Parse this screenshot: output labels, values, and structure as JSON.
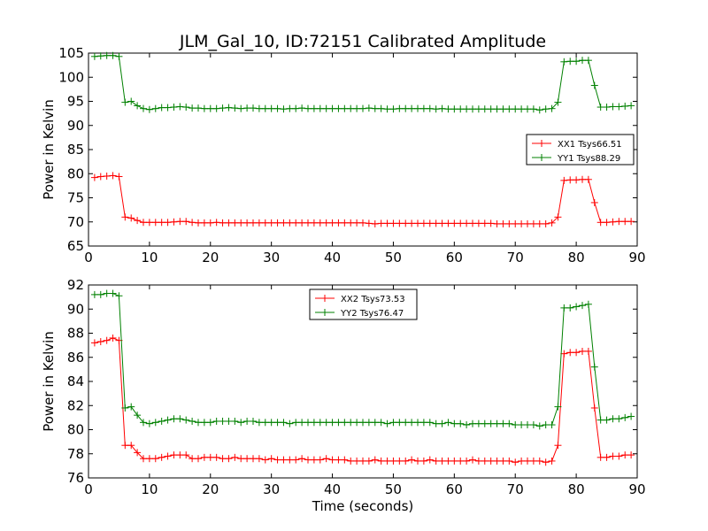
{
  "title": "JLM_Gal_10, ID:72151 Calibrated Amplitude",
  "chart_data": [
    {
      "type": "line",
      "xlabel": "",
      "ylabel": "Power in Kelvin",
      "xlim": [
        0,
        90
      ],
      "ylim": [
        65,
        105
      ],
      "xticks": [
        0,
        10,
        20,
        30,
        40,
        50,
        60,
        70,
        80,
        90
      ],
      "yticks": [
        65,
        70,
        75,
        80,
        85,
        90,
        95,
        100,
        105
      ],
      "grid": false,
      "legend_position": "center-right",
      "x": [
        1,
        2,
        3,
        4,
        5,
        6,
        7,
        8,
        9,
        10,
        11,
        12,
        13,
        14,
        15,
        16,
        17,
        18,
        19,
        20,
        21,
        22,
        23,
        24,
        25,
        26,
        27,
        28,
        29,
        30,
        31,
        32,
        33,
        34,
        35,
        36,
        37,
        38,
        39,
        40,
        41,
        42,
        43,
        44,
        45,
        46,
        47,
        48,
        49,
        50,
        51,
        52,
        53,
        54,
        55,
        56,
        57,
        58,
        59,
        60,
        61,
        62,
        63,
        64,
        65,
        66,
        67,
        68,
        69,
        70,
        71,
        72,
        73,
        74,
        75,
        76,
        77,
        78,
        79,
        80,
        81,
        82,
        83,
        84,
        85,
        86,
        87,
        88,
        89
      ],
      "series": [
        {
          "name": "XX1 Tsys66.51",
          "color": "#ff0000",
          "values": [
            79.2,
            79.4,
            79.5,
            79.6,
            79.4,
            71.0,
            70.8,
            70.3,
            69.9,
            69.9,
            69.9,
            69.9,
            69.9,
            70.0,
            70.1,
            70.1,
            69.9,
            69.8,
            69.8,
            69.8,
            69.9,
            69.8,
            69.8,
            69.8,
            69.8,
            69.8,
            69.8,
            69.8,
            69.8,
            69.8,
            69.8,
            69.8,
            69.8,
            69.8,
            69.8,
            69.8,
            69.8,
            69.8,
            69.8,
            69.8,
            69.8,
            69.8,
            69.8,
            69.8,
            69.8,
            69.7,
            69.6,
            69.7,
            69.7,
            69.7,
            69.7,
            69.7,
            69.7,
            69.7,
            69.7,
            69.7,
            69.7,
            69.7,
            69.7,
            69.7,
            69.7,
            69.7,
            69.7,
            69.7,
            69.7,
            69.7,
            69.6,
            69.6,
            69.6,
            69.6,
            69.6,
            69.6,
            69.6,
            69.6,
            69.6,
            69.8,
            71.0,
            78.6,
            78.7,
            78.7,
            78.8,
            78.8,
            74.0,
            69.9,
            69.9,
            70.0,
            70.1,
            70.1,
            70.1
          ]
        },
        {
          "name": "YY1 Tsys88.29",
          "color": "#008000",
          "values": [
            104.3,
            104.4,
            104.5,
            104.5,
            104.3,
            94.8,
            95.0,
            94.1,
            93.5,
            93.3,
            93.5,
            93.7,
            93.7,
            93.8,
            93.9,
            93.8,
            93.6,
            93.6,
            93.5,
            93.5,
            93.5,
            93.6,
            93.7,
            93.6,
            93.5,
            93.6,
            93.6,
            93.5,
            93.5,
            93.5,
            93.5,
            93.4,
            93.5,
            93.5,
            93.6,
            93.5,
            93.5,
            93.5,
            93.5,
            93.5,
            93.5,
            93.5,
            93.5,
            93.5,
            93.5,
            93.6,
            93.5,
            93.5,
            93.4,
            93.4,
            93.5,
            93.5,
            93.5,
            93.5,
            93.5,
            93.5,
            93.4,
            93.5,
            93.4,
            93.4,
            93.4,
            93.4,
            93.4,
            93.4,
            93.4,
            93.4,
            93.4,
            93.4,
            93.4,
            93.4,
            93.4,
            93.4,
            93.4,
            93.2,
            93.4,
            93.5,
            94.8,
            103.2,
            103.3,
            103.3,
            103.5,
            103.5,
            98.3,
            93.8,
            93.8,
            93.9,
            93.9,
            94.0,
            94.1
          ]
        }
      ]
    },
    {
      "type": "line",
      "xlabel": "Time (seconds)",
      "ylabel": "Power in Kelvin",
      "xlim": [
        0,
        90
      ],
      "ylim": [
        76,
        92
      ],
      "xticks": [
        0,
        10,
        20,
        30,
        40,
        50,
        60,
        70,
        80,
        90
      ],
      "yticks": [
        76,
        78,
        80,
        82,
        84,
        86,
        88,
        90,
        92
      ],
      "grid": false,
      "legend_position": "upper-center",
      "x": [
        1,
        2,
        3,
        4,
        5,
        6,
        7,
        8,
        9,
        10,
        11,
        12,
        13,
        14,
        15,
        16,
        17,
        18,
        19,
        20,
        21,
        22,
        23,
        24,
        25,
        26,
        27,
        28,
        29,
        30,
        31,
        32,
        33,
        34,
        35,
        36,
        37,
        38,
        39,
        40,
        41,
        42,
        43,
        44,
        45,
        46,
        47,
        48,
        49,
        50,
        51,
        52,
        53,
        54,
        55,
        56,
        57,
        58,
        59,
        60,
        61,
        62,
        63,
        64,
        65,
        66,
        67,
        68,
        69,
        70,
        71,
        72,
        73,
        74,
        75,
        76,
        77,
        78,
        79,
        80,
        81,
        82,
        83,
        84,
        85,
        86,
        87,
        88,
        89
      ],
      "series": [
        {
          "name": "XX2 Tsys73.53",
          "color": "#ff0000",
          "values": [
            87.2,
            87.3,
            87.4,
            87.6,
            87.4,
            78.7,
            78.7,
            78.1,
            77.6,
            77.6,
            77.6,
            77.7,
            77.8,
            77.9,
            77.9,
            77.9,
            77.6,
            77.6,
            77.7,
            77.7,
            77.7,
            77.6,
            77.6,
            77.7,
            77.6,
            77.6,
            77.6,
            77.6,
            77.5,
            77.6,
            77.5,
            77.5,
            77.5,
            77.5,
            77.6,
            77.5,
            77.5,
            77.5,
            77.6,
            77.5,
            77.5,
            77.5,
            77.4,
            77.4,
            77.4,
            77.4,
            77.5,
            77.4,
            77.4,
            77.4,
            77.4,
            77.4,
            77.5,
            77.4,
            77.4,
            77.5,
            77.4,
            77.4,
            77.4,
            77.4,
            77.4,
            77.4,
            77.5,
            77.4,
            77.4,
            77.4,
            77.4,
            77.4,
            77.4,
            77.3,
            77.4,
            77.4,
            77.4,
            77.4,
            77.3,
            77.4,
            78.7,
            86.3,
            86.4,
            86.4,
            86.5,
            86.5,
            81.8,
            77.7,
            77.7,
            77.8,
            77.8,
            77.9,
            77.9
          ]
        },
        {
          "name": "YY2 Tsys76.47",
          "color": "#008000",
          "values": [
            91.2,
            91.2,
            91.3,
            91.3,
            91.1,
            81.8,
            81.9,
            81.2,
            80.6,
            80.5,
            80.6,
            80.7,
            80.8,
            80.9,
            80.9,
            80.8,
            80.7,
            80.6,
            80.6,
            80.6,
            80.7,
            80.7,
            80.7,
            80.7,
            80.6,
            80.7,
            80.7,
            80.6,
            80.6,
            80.6,
            80.6,
            80.6,
            80.5,
            80.6,
            80.6,
            80.6,
            80.6,
            80.6,
            80.6,
            80.6,
            80.6,
            80.6,
            80.6,
            80.6,
            80.6,
            80.6,
            80.6,
            80.6,
            80.5,
            80.6,
            80.6,
            80.6,
            80.6,
            80.6,
            80.6,
            80.6,
            80.5,
            80.5,
            80.6,
            80.5,
            80.5,
            80.4,
            80.5,
            80.5,
            80.5,
            80.5,
            80.5,
            80.5,
            80.5,
            80.4,
            80.4,
            80.4,
            80.4,
            80.3,
            80.4,
            80.4,
            81.9,
            90.1,
            90.1,
            90.2,
            90.3,
            90.4,
            85.2,
            80.8,
            80.8,
            80.9,
            80.9,
            81.0,
            81.1
          ]
        }
      ]
    }
  ]
}
